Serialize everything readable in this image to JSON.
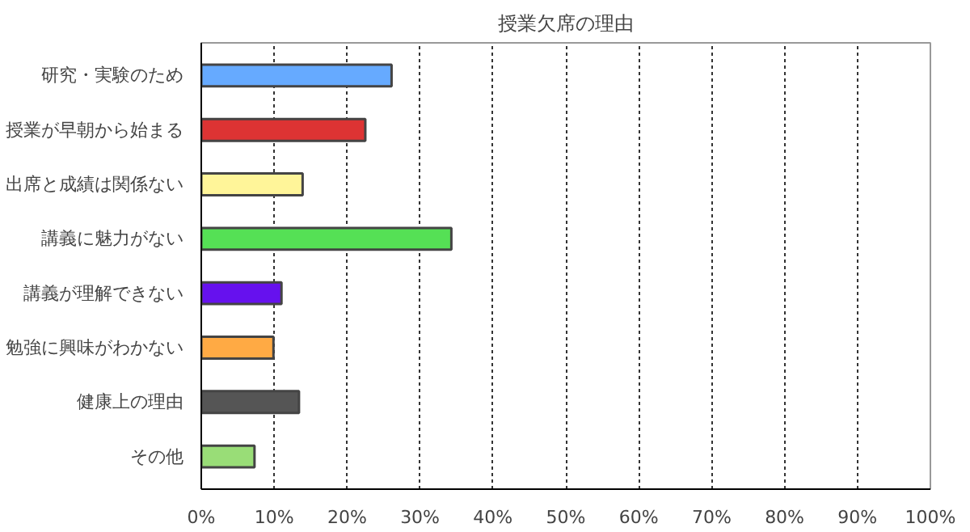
{
  "chart_data": {
    "type": "bar",
    "orientation": "horizontal",
    "title": "授業欠席の理由",
    "categories": [
      "研究・実験のため",
      "授業が早朝から始まる",
      "出席と成績は関係ない",
      "講義に魅力がない",
      "講義が理解できない",
      "勉強に興味がわかない",
      "健康上の理由",
      "その他"
    ],
    "values": [
      26.1,
      22.5,
      13.9,
      34.3,
      11.0,
      9.9,
      13.4,
      7.3
    ],
    "colors": [
      "#66aaff",
      "#dd3333",
      "#fff599",
      "#55e055",
      "#6611ee",
      "#ffaa44",
      "#555555",
      "#99dd77"
    ],
    "xlim": [
      0,
      100
    ],
    "xticks": [
      {
        "value": 0,
        "label": "0%"
      },
      {
        "value": 10,
        "label": "10%"
      },
      {
        "value": 20,
        "label": "20%"
      },
      {
        "value": 30,
        "label": "30%"
      },
      {
        "value": 40,
        "label": "40%"
      },
      {
        "value": 50,
        "label": "50%"
      },
      {
        "value": 60,
        "label": "60%"
      },
      {
        "value": 70,
        "label": "70%"
      },
      {
        "value": 80,
        "label": "80%"
      },
      {
        "value": 90,
        "label": "90%"
      },
      {
        "value": 100,
        "label": "100%"
      }
    ],
    "grid": "x"
  }
}
